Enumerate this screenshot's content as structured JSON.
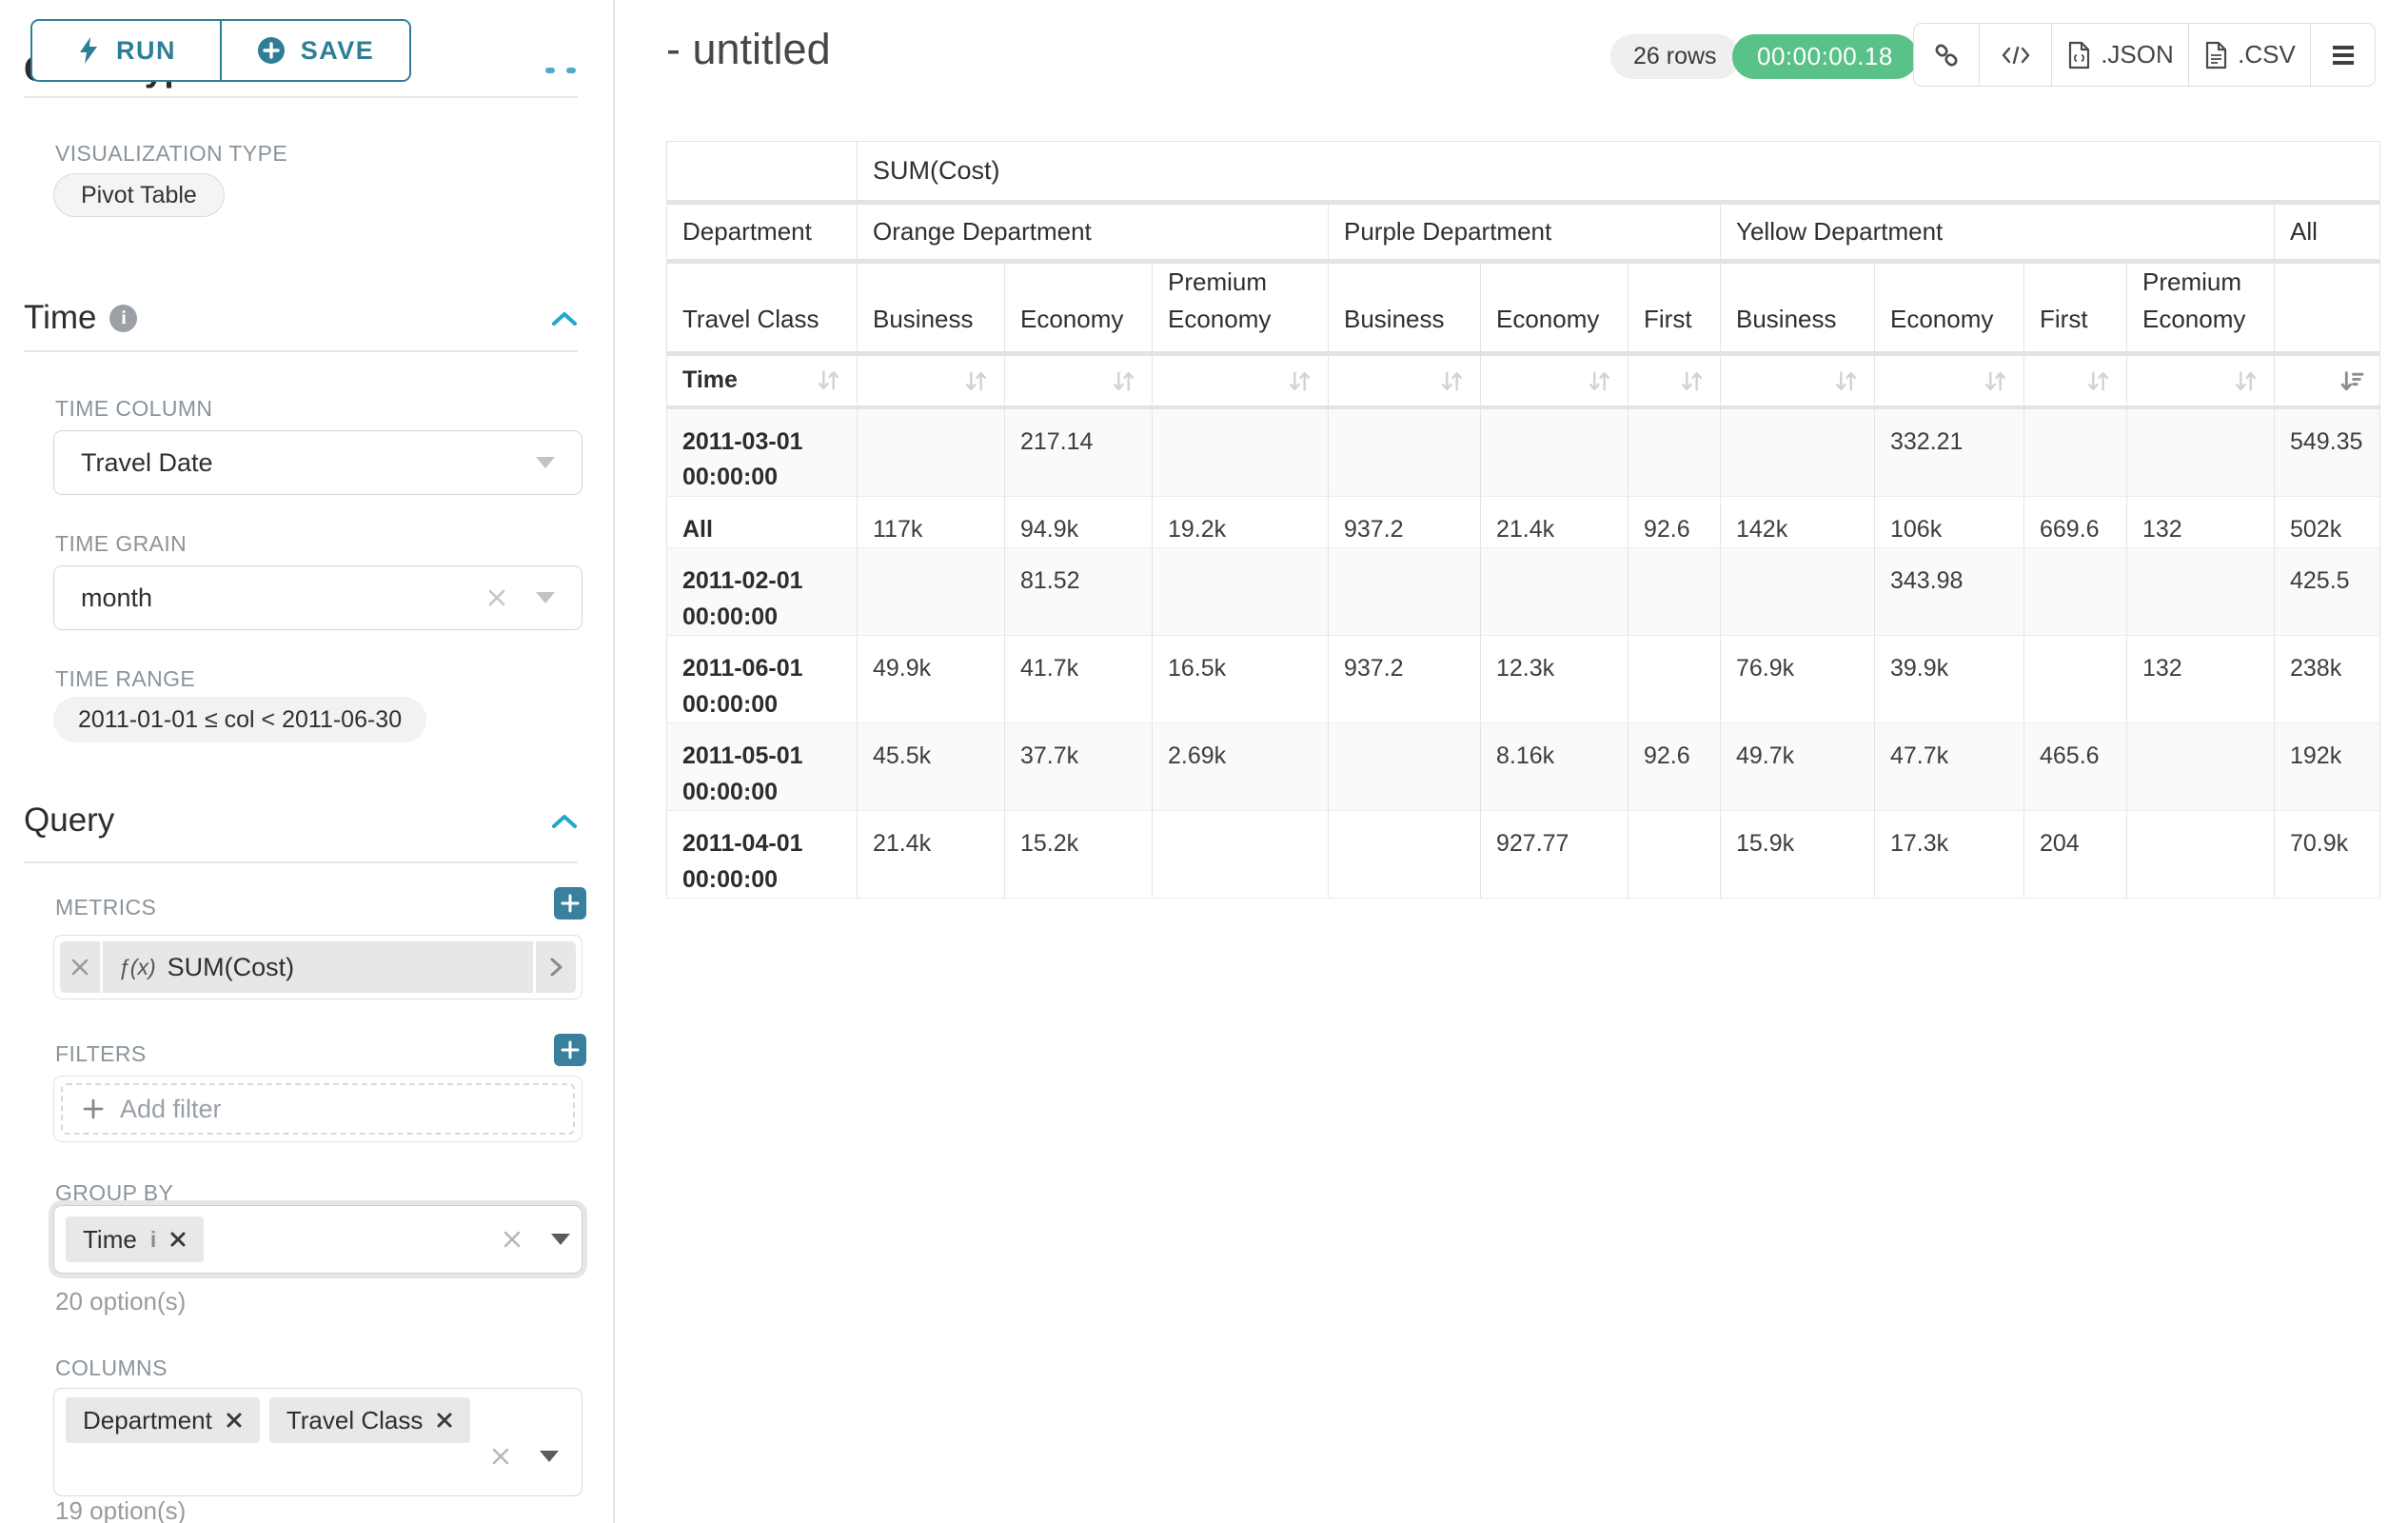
{
  "toolbar": {
    "run": "RUN",
    "save": "SAVE"
  },
  "sidebar": {
    "scrolled_section": "Chart Type",
    "viz_label": "VISUALIZATION TYPE",
    "viz_value": "Pivot Table",
    "time": {
      "title": "Time",
      "time_column_label": "TIME COLUMN",
      "time_column_value": "Travel Date",
      "time_grain_label": "TIME GRAIN",
      "time_grain_value": "month",
      "time_range_label": "TIME RANGE",
      "time_range_value": "2011-01-01 ≤ col < 2011-06-30"
    },
    "query": {
      "title": "Query",
      "metrics_label": "METRICS",
      "metric_fx": "ƒ(x)",
      "metric_value": "SUM(Cost)",
      "filters_label": "FILTERS",
      "add_filter_label": "Add filter",
      "group_by_label": "GROUP BY",
      "group_by_tag": "Time",
      "group_by_options": "20 option(s)",
      "columns_label": "COLUMNS",
      "columns_tag_1": "Department",
      "columns_tag_2": "Travel Class",
      "columns_options": "19 option(s)"
    }
  },
  "header": {
    "title": "- untitled",
    "rows_badge": "26 rows",
    "timer": "00:00:00.18",
    "export_json": ".JSON",
    "export_csv": ".CSV"
  },
  "pivot": {
    "metric_header": "SUM(Cost)",
    "corner": {
      "row2": "Department",
      "row3": "Travel Class",
      "row4": "Time"
    },
    "column_groups": [
      {
        "label": "Orange Department",
        "span": 3
      },
      {
        "label": "Purple Department",
        "span": 3
      },
      {
        "label": "Yellow Department",
        "span": 4
      },
      {
        "label": "All",
        "span": 1
      }
    ],
    "columns": [
      "Business",
      "Economy",
      "Premium Economy",
      "Business",
      "Economy",
      "First",
      "Business",
      "Economy",
      "First",
      "Premium Economy",
      ""
    ],
    "rows": [
      {
        "label": "2011-03-01 00:00:00",
        "values": [
          "",
          "217.14",
          "",
          "",
          "",
          "",
          "",
          "332.21",
          "",
          "",
          "549.35"
        ]
      },
      {
        "label": "All",
        "values": [
          "117k",
          "94.9k",
          "19.2k",
          "937.2",
          "21.4k",
          "92.6",
          "142k",
          "106k",
          "669.6",
          "132",
          "502k"
        ]
      },
      {
        "label": "2011-02-01 00:00:00",
        "values": [
          "",
          "81.52",
          "",
          "",
          "",
          "",
          "",
          "343.98",
          "",
          "",
          "425.5"
        ]
      },
      {
        "label": "2011-06-01 00:00:00",
        "values": [
          "49.9k",
          "41.7k",
          "16.5k",
          "937.2",
          "12.3k",
          "",
          "76.9k",
          "39.9k",
          "",
          "132",
          "238k"
        ]
      },
      {
        "label": "2011-05-01 00:00:00",
        "values": [
          "45.5k",
          "37.7k",
          "2.69k",
          "",
          "8.16k",
          "92.6",
          "49.7k",
          "47.7k",
          "465.6",
          "",
          "192k"
        ]
      },
      {
        "label": "2011-04-01 00:00:00",
        "values": [
          "21.4k",
          "15.2k",
          "",
          "",
          "927.77",
          "",
          "15.9k",
          "17.3k",
          "204",
          "",
          "70.9k"
        ]
      }
    ]
  },
  "colors": {
    "accent": "#2e7e97",
    "accent_bright": "#20a7c9",
    "success": "#5ac189",
    "plus_button": "#38809b"
  }
}
